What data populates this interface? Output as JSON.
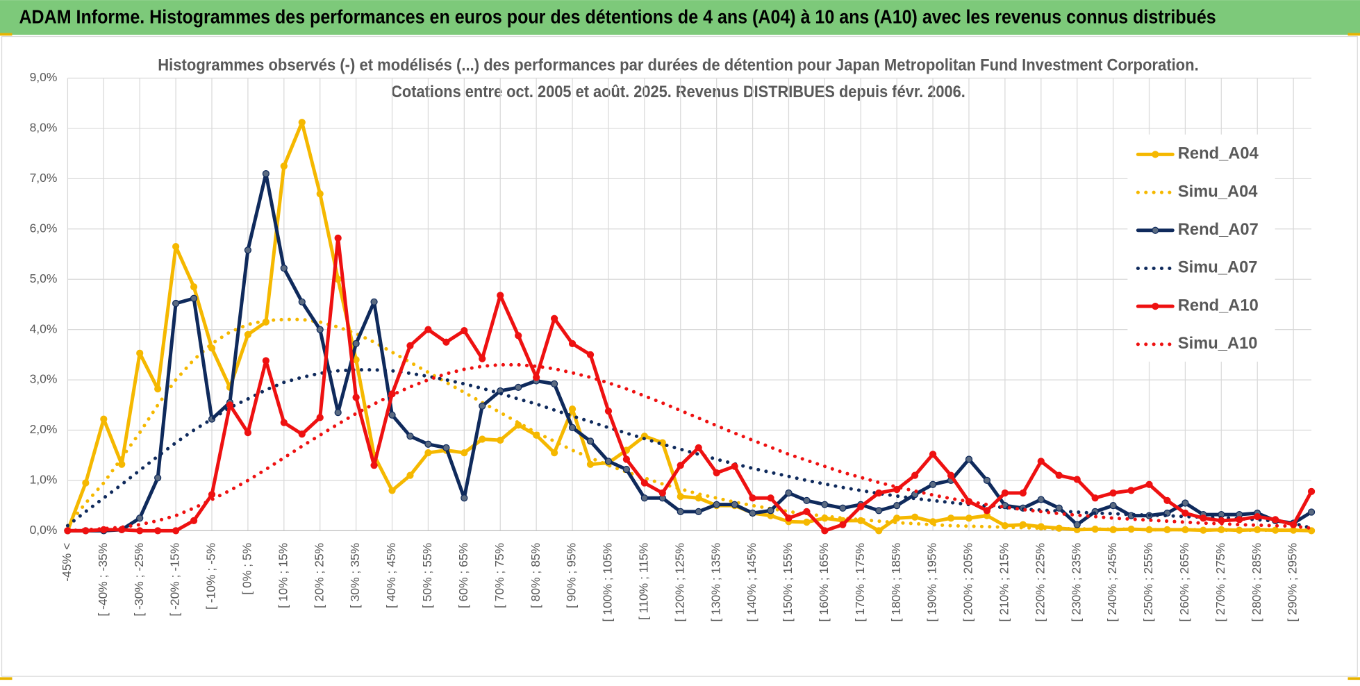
{
  "header": "ADAM Informe. Histogrammes des performances en euros pour des détentions de 4 ans (A04) à 10 ans (A10) avec les revenus connus distribués",
  "chart_data": {
    "type": "line",
    "title": "Histogrammes observés (-) et modélisés (...)  des performances par durées de détention pour Japan Metropolitan Fund Investment Corporation.",
    "subtitle": "Cotations entre oct. 2005 et août. 2025. Revenus DISTRIBUES depuis févr. 2006.",
    "categories": [
      "-45% <",
      null,
      "[ -40% ; -35%",
      null,
      "[ -30% ; -25%",
      null,
      "[ -20% ; -15%",
      null,
      "[ -10% ; -5%",
      null,
      "[ 0% ; 5%",
      null,
      "[ 10% ; 15%",
      null,
      "[ 20% ; 25%",
      null,
      "[ 30% ; 35%",
      null,
      "[ 40% ; 45%",
      null,
      "[ 50% ; 55%",
      null,
      "[ 60% ; 65%",
      null,
      "[ 70% ; 75%",
      null,
      "[ 80% ; 85%",
      null,
      "[ 90% ; 95%",
      null,
      "[ 100% ; 105%",
      null,
      "[ 110% ; 115%",
      null,
      "[ 120% ; 125%",
      null,
      "[ 130% ; 135%",
      null,
      "[ 140% ; 145%",
      null,
      "[ 150% ; 155%",
      null,
      "[ 160% ; 165%",
      null,
      "[ 170% ; 175%",
      null,
      "[ 180% ; 185%",
      null,
      "[ 190% ; 195%",
      null,
      "[ 200% ; 205%",
      null,
      "[ 210% ; 215%",
      null,
      "[ 220% ; 225%",
      null,
      "[ 230% ; 235%",
      null,
      "[ 240% ; 245%",
      null,
      "[ 250% ; 255%",
      null,
      "[ 260% ; 265%",
      null,
      "[ 270% ; 275%",
      null,
      "[ 280% ; 285%",
      null,
      "[ 290% ; 295%",
      null
    ],
    "series": [
      {
        "name": "Rend_A04",
        "color": "#f5b800",
        "style": "solid",
        "values": [
          0,
          0.95,
          2.22,
          1.32,
          3.53,
          2.82,
          5.65,
          4.85,
          3.63,
          2.85,
          3.9,
          4.15,
          7.25,
          8.12,
          6.7,
          5.0,
          3.4,
          1.5,
          0.8,
          1.1,
          1.55,
          1.6,
          1.55,
          1.82,
          1.8,
          2.1,
          1.9,
          1.55,
          2.42,
          1.32,
          1.35,
          1.6,
          1.88,
          1.75,
          0.68,
          0.65,
          0.5,
          0.5,
          0.35,
          0.3,
          0.18,
          0.17,
          0.25,
          0.2,
          0.2,
          0,
          0.25,
          0.27,
          0.18,
          0.25,
          0.25,
          0.3,
          0.1,
          0.12,
          0.08,
          0.05,
          0.02,
          0.03,
          0.02,
          0.03,
          0.02,
          0.02,
          0.02,
          0.01,
          0.02,
          0.01,
          0.02,
          0.01,
          0.01,
          0
        ]
      },
      {
        "name": "Simu_A04",
        "color": "#f5b800",
        "style": "dotted",
        "values": [
          0.1,
          0.55,
          0.95,
          1.45,
          1.95,
          2.5,
          3.0,
          3.4,
          3.72,
          3.95,
          4.1,
          4.18,
          4.2,
          4.2,
          4.15,
          4.05,
          3.92,
          3.75,
          3.55,
          3.35,
          3.15,
          2.95,
          2.75,
          2.55,
          2.35,
          2.15,
          1.95,
          1.78,
          1.6,
          1.45,
          1.3,
          1.17,
          1.05,
          0.93,
          0.83,
          0.73,
          0.65,
          0.57,
          0.5,
          0.44,
          0.38,
          0.33,
          0.29,
          0.25,
          0.22,
          0.19,
          0.16,
          0.14,
          0.12,
          0.1,
          0.09,
          0.08,
          0.07,
          0.06,
          0.05,
          0.04,
          0.04,
          0.03,
          0.03,
          0.03,
          0.02,
          0.02,
          0.02,
          0.02,
          0.01,
          0.01,
          0.01,
          0.01,
          0.01,
          0.01
        ]
      },
      {
        "name": "Rend_A07",
        "color": "#0f2a5c",
        "style": "solid",
        "values": [
          0,
          0,
          0,
          0.02,
          0.25,
          1.05,
          4.52,
          4.62,
          2.22,
          2.55,
          5.58,
          7.1,
          5.22,
          4.55,
          4.0,
          2.35,
          3.72,
          4.55,
          2.3,
          1.88,
          1.72,
          1.65,
          0.65,
          2.48,
          2.78,
          2.85,
          2.98,
          2.92,
          2.05,
          1.78,
          1.38,
          1.22,
          0.65,
          0.65,
          0.38,
          0.38,
          0.52,
          0.52,
          0.35,
          0.4,
          0.75,
          0.6,
          0.52,
          0.45,
          0.52,
          0.4,
          0.5,
          0.72,
          0.92,
          1.0,
          1.42,
          1.0,
          0.5,
          0.45,
          0.62,
          0.45,
          0.12,
          0.38,
          0.5,
          0.3,
          0.3,
          0.35,
          0.55,
          0.32,
          0.32,
          0.32,
          0.35,
          0.2,
          0.15,
          0.37
        ]
      },
      {
        "name": "Simu_A07",
        "color": "#0f2a5c",
        "style": "dotted",
        "values": [
          0.1,
          0.38,
          0.65,
          0.92,
          1.2,
          1.48,
          1.75,
          2.0,
          2.22,
          2.45,
          2.62,
          2.8,
          2.95,
          3.05,
          3.13,
          3.18,
          3.2,
          3.2,
          3.18,
          3.13,
          3.07,
          3.0,
          2.92,
          2.83,
          2.73,
          2.62,
          2.52,
          2.4,
          2.28,
          2.17,
          2.05,
          1.94,
          1.83,
          1.72,
          1.62,
          1.52,
          1.42,
          1.33,
          1.24,
          1.16,
          1.08,
          1.0,
          0.93,
          0.86,
          0.8,
          0.74,
          0.69,
          0.64,
          0.6,
          0.56,
          0.52,
          0.49,
          0.46,
          0.43,
          0.41,
          0.39,
          0.37,
          0.35,
          0.34,
          0.32,
          0.31,
          0.3,
          0.28,
          0.27,
          0.26,
          0.24,
          0.22,
          0.19,
          0.15,
          0.05
        ]
      },
      {
        "name": "Rend_A10",
        "color": "#ee1111",
        "style": "solid",
        "values": [
          0,
          0,
          0.02,
          0.02,
          0,
          0,
          0,
          0.2,
          0.72,
          2.5,
          1.95,
          3.38,
          2.15,
          1.92,
          2.25,
          5.82,
          2.65,
          1.3,
          2.72,
          3.68,
          4.0,
          3.75,
          3.98,
          3.42,
          4.68,
          3.88,
          3.05,
          4.22,
          3.72,
          3.5,
          2.38,
          1.42,
          0.95,
          0.75,
          1.3,
          1.65,
          1.15,
          1.28,
          0.65,
          0.65,
          0.25,
          0.38,
          0,
          0.12,
          0.48,
          0.75,
          0.82,
          1.1,
          1.52,
          1.1,
          0.58,
          0.4,
          0.75,
          0.75,
          1.38,
          1.1,
          1.02,
          0.65,
          0.75,
          0.8,
          0.92,
          0.6,
          0.35,
          0.25,
          0.2,
          0.22,
          0.28,
          0.22,
          0.12,
          0.78
        ]
      },
      {
        "name": "Simu_A10",
        "color": "#ee1111",
        "style": "dotted",
        "values": [
          0,
          0.02,
          0.04,
          0.07,
          0.12,
          0.2,
          0.3,
          0.45,
          0.62,
          0.8,
          1.0,
          1.22,
          1.45,
          1.68,
          1.9,
          2.12,
          2.33,
          2.52,
          2.7,
          2.86,
          3.0,
          3.12,
          3.21,
          3.27,
          3.3,
          3.3,
          3.27,
          3.22,
          3.14,
          3.05,
          2.94,
          2.82,
          2.68,
          2.54,
          2.39,
          2.24,
          2.09,
          1.94,
          1.8,
          1.66,
          1.52,
          1.4,
          1.28,
          1.16,
          1.06,
          0.96,
          0.87,
          0.79,
          0.71,
          0.64,
          0.58,
          0.52,
          0.47,
          0.42,
          0.38,
          0.34,
          0.31,
          0.28,
          0.25,
          0.23,
          0.21,
          0.19,
          0.17,
          0.15,
          0.14,
          0.12,
          0.11,
          0.1,
          0.09,
          0.05
        ]
      }
    ],
    "ylim": [
      0,
      9
    ],
    "yticks": [
      {
        "value": 0,
        "label": "0,0%"
      },
      {
        "value": 1,
        "label": "1,0%"
      },
      {
        "value": 2,
        "label": "2,0%"
      },
      {
        "value": 3,
        "label": "3,0%"
      },
      {
        "value": 4,
        "label": "4,0%"
      },
      {
        "value": 5,
        "label": "5,0%"
      },
      {
        "value": 6,
        "label": "6,0%"
      },
      {
        "value": 7,
        "label": "7,0%"
      },
      {
        "value": 8,
        "label": "8,0%"
      },
      {
        "value": 9,
        "label": "9,0%"
      }
    ],
    "grid": true,
    "legend": "right"
  }
}
